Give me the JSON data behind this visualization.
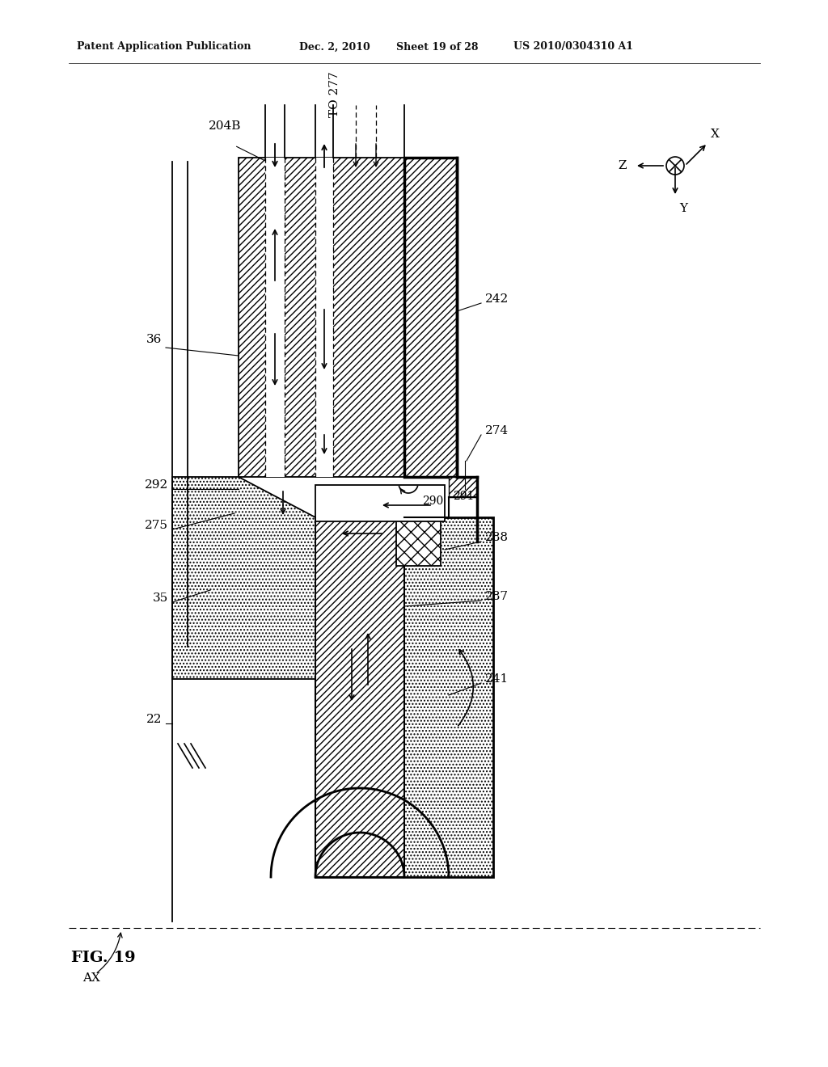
{
  "bg_color": "#ffffff",
  "title_line1": "Patent Application Publication",
  "title_line2": "Dec. 2, 2010",
  "title_line3": "Sheet 19 of 28",
  "title_line4": "US 2010/0304310 A1"
}
